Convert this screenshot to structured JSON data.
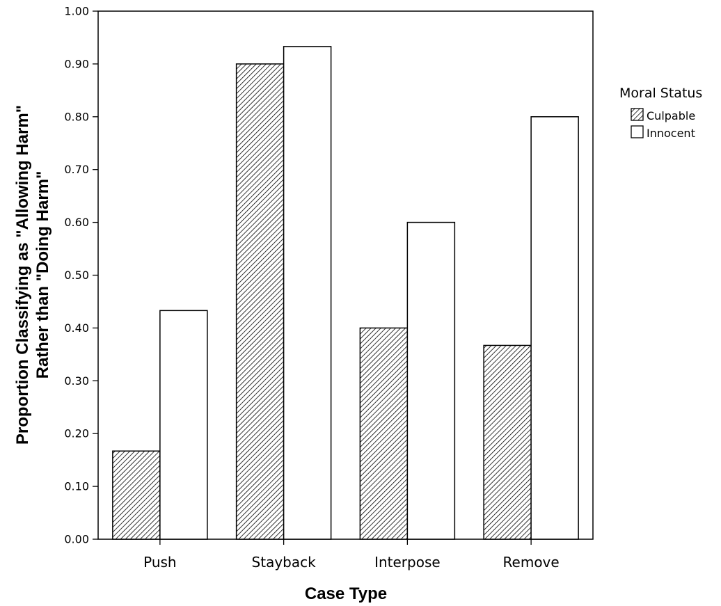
{
  "chart_data": {
    "type": "bar",
    "title": "",
    "xlabel": "Case Type",
    "ylabel_lines": [
      "Proportion Classifying as \"Allowing Harm\"",
      "Rather than \"Doing Harm\""
    ],
    "categories": [
      "Push",
      "Stayback",
      "Interpose",
      "Remove"
    ],
    "series": [
      {
        "name": "Culpable",
        "values": [
          0.167,
          0.9,
          0.4,
          0.367
        ],
        "fill": "hatch"
      },
      {
        "name": "Innocent",
        "values": [
          0.433,
          0.933,
          0.6,
          0.8
        ],
        "fill": "#ffffff"
      }
    ],
    "ylim": [
      0,
      1.0
    ],
    "yticks": [
      "0.00",
      "0.10",
      "0.20",
      "0.30",
      "0.40",
      "0.50",
      "0.60",
      "0.70",
      "0.80",
      "0.90",
      "1.00"
    ],
    "legend": {
      "title": "Moral Status",
      "position": "right"
    },
    "grid": false
  }
}
